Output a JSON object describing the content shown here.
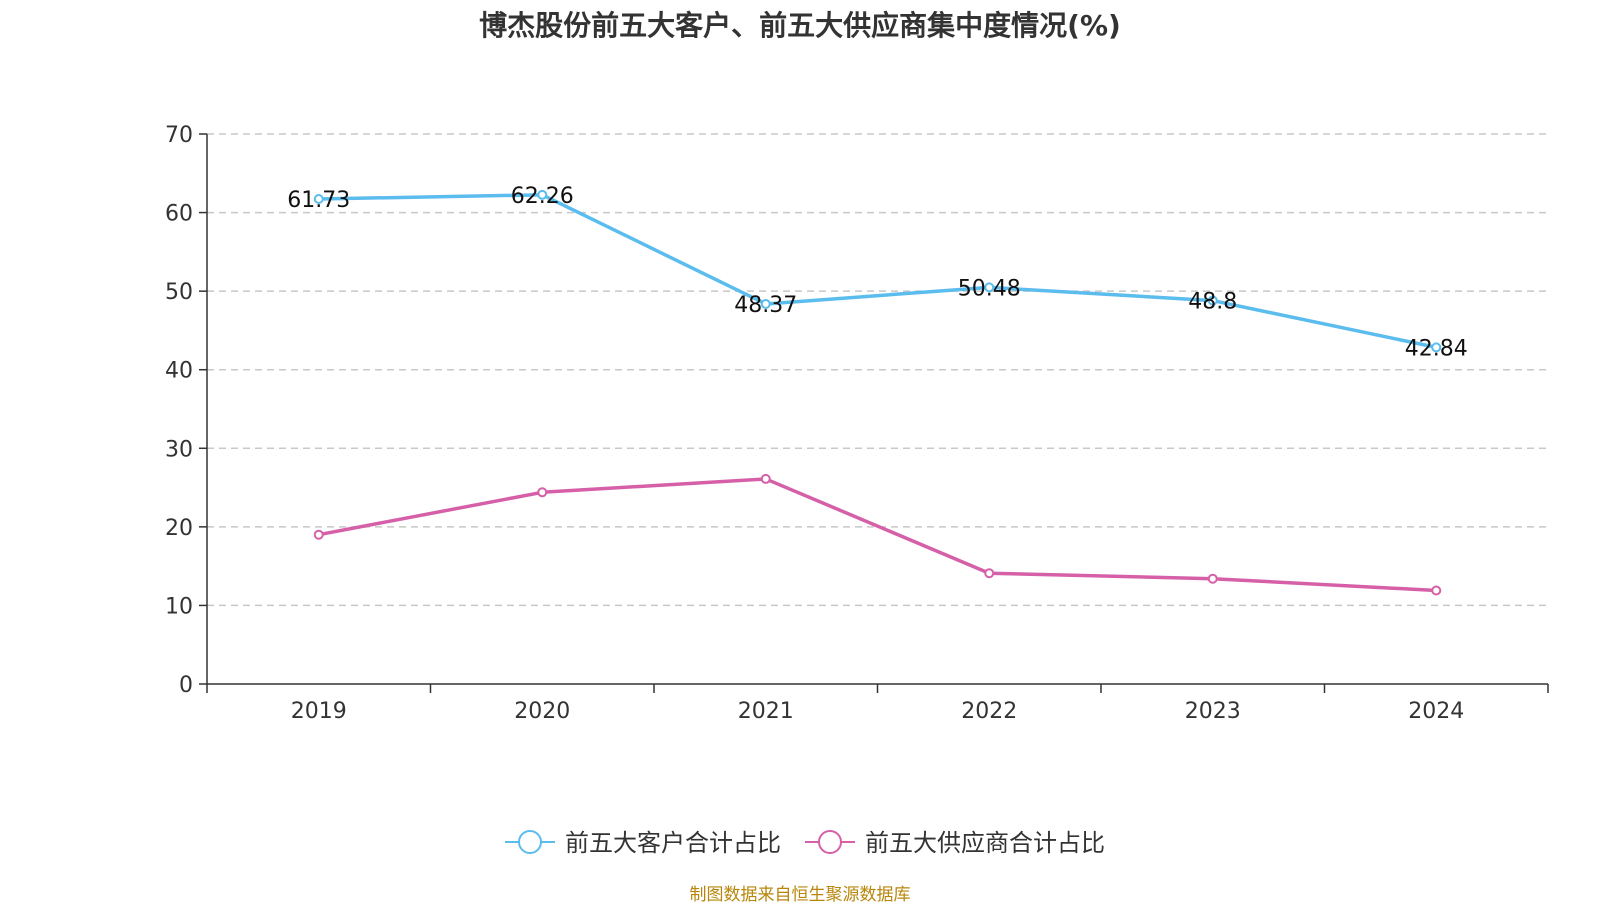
{
  "chart_data": {
    "type": "line",
    "title": "博杰股份前五大客户、前五大供应商集中度情况(%)",
    "categories": [
      "2019",
      "2020",
      "2021",
      "2022",
      "2023",
      "2024"
    ],
    "ylim": [
      0,
      70
    ],
    "yticks": [
      0,
      10,
      20,
      30,
      40,
      50,
      60,
      70
    ],
    "grid": "horizontal-dashed",
    "legend_position": "bottom-center",
    "series": [
      {
        "name": "前五大客户合计占比",
        "color": "#5bbcee",
        "values": [
          61.73,
          62.26,
          48.37,
          50.48,
          48.8,
          42.84
        ],
        "labels": [
          "61.73",
          "62.26",
          "48.37",
          "50.48",
          "48.8",
          "42.84"
        ]
      },
      {
        "name": "前五大供应商合计占比",
        "color": "#d660a8",
        "values": [
          19.0,
          24.4,
          26.1,
          14.1,
          13.4,
          11.9
        ]
      }
    ],
    "source": "制图数据来自恒生聚源数据库"
  }
}
